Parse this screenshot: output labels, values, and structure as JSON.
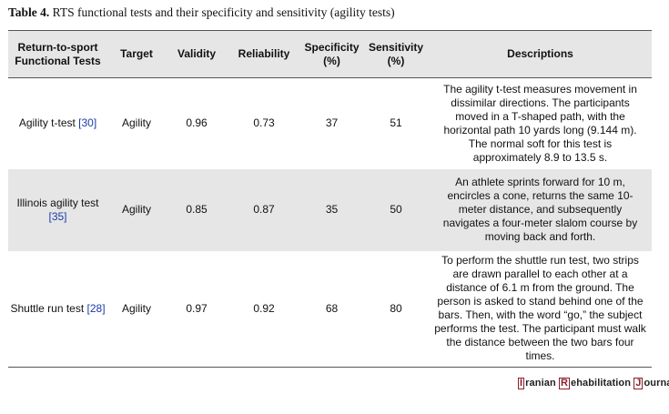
{
  "caption": {
    "label": "Table 4.",
    "text": " RTS functional tests and their specificity and sensitivity (agility tests)"
  },
  "headers": {
    "test": "Return-to-sport Functional Tests",
    "target": "Target",
    "validity": "Validity",
    "reliability": "Reliability",
    "specificity": "Specificity (%)",
    "sensitivity": "Sensitivity (%)",
    "descriptions": "Descriptions"
  },
  "rows": [
    {
      "test": "Agility t-test ",
      "ref": "[30]",
      "target": "Agility",
      "validity": "0.96",
      "reliability": "0.73",
      "specificity": "37",
      "sensitivity": "51",
      "description": "The agility t-test measures movement in dissimilar directions. The participants moved in a T-shaped path, with the horizontal path 10 yards long (9.144 m). The normal soft for this test is approximately 8.9 to 13.5 s."
    },
    {
      "test": "Illinois agility test ",
      "ref": "[35]",
      "target": "Agility",
      "validity": "0.85",
      "reliability": "0.87",
      "specificity": "35",
      "sensitivity": "50",
      "description": "An athlete sprints forward for 10 m, encircles a cone, returns the same 10-meter distance, and subsequently navigates a four-meter slalom course by moving back and forth."
    },
    {
      "test": "Shuttle run test ",
      "ref": "[28]",
      "target": "Agility",
      "validity": "0.97",
      "reliability": "0.92",
      "specificity": "68",
      "sensitivity": "80",
      "description": "To perform the shuttle run test, two strips are drawn parallel to each other at a distance of 6.1 m from the ground. The person is asked to stand behind one of the bars. Then, with the word “go,” the subject performs the test. The participant must walk the distance between the two bars four times."
    }
  ],
  "journal": {
    "i": "I",
    "w1": "ranian ",
    "r": "R",
    "w2": "ehabilitation ",
    "j": "J",
    "w3": "ournal"
  }
}
